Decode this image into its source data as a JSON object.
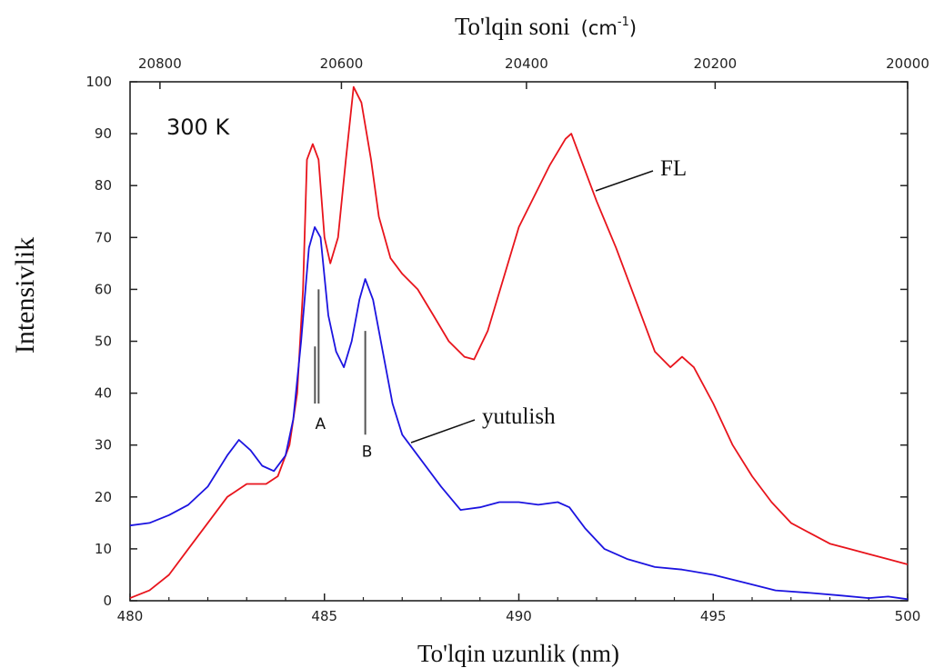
{
  "chart_data": {
    "type": "line",
    "title": "",
    "xlabel": "To'lqin uzunlik (nm)",
    "ylabel": "Intensivlik",
    "x2label": "To'lqin soni",
    "x2label_unit": "(cm",
    "x2label_exp": "-1",
    "x2label_close": ")",
    "xlim": [
      480,
      500
    ],
    "ylim": [
      0,
      100
    ],
    "xticks": [
      480,
      485,
      490,
      495,
      500
    ],
    "yticks": [
      0,
      10,
      20,
      30,
      40,
      50,
      60,
      70,
      80,
      90,
      100
    ],
    "x2ticks": [
      "20800",
      "20600",
      "20400",
      "20200",
      "20000"
    ],
    "x2tick_wavenumbers": [
      20800,
      20600,
      20400,
      20200,
      20000
    ],
    "grid": false,
    "annotations": {
      "temperature": "300 K",
      "peak_a": "A",
      "peak_b": "B",
      "peak_a_x": 484.85,
      "peak_b_x": 486.05
    },
    "series": [
      {
        "name": "FL",
        "color": "#e8141c",
        "points": [
          [
            480.0,
            0.5
          ],
          [
            480.5,
            2
          ],
          [
            481.0,
            5
          ],
          [
            481.5,
            10
          ],
          [
            482.0,
            15
          ],
          [
            482.5,
            20
          ],
          [
            483.0,
            22.5
          ],
          [
            483.5,
            22.5
          ],
          [
            483.8,
            24
          ],
          [
            484.1,
            30
          ],
          [
            484.3,
            40
          ],
          [
            484.45,
            60
          ],
          [
            484.55,
            85
          ],
          [
            484.7,
            88
          ],
          [
            484.85,
            85
          ],
          [
            485.0,
            70
          ],
          [
            485.15,
            65
          ],
          [
            485.35,
            70
          ],
          [
            485.55,
            85
          ],
          [
            485.75,
            99
          ],
          [
            485.95,
            96
          ],
          [
            486.2,
            85
          ],
          [
            486.4,
            74
          ],
          [
            486.7,
            66
          ],
          [
            487.0,
            63
          ],
          [
            487.4,
            60
          ],
          [
            487.8,
            55
          ],
          [
            488.2,
            50
          ],
          [
            488.6,
            47
          ],
          [
            488.85,
            46.5
          ],
          [
            489.2,
            52
          ],
          [
            489.6,
            62
          ],
          [
            490.0,
            72
          ],
          [
            490.4,
            78
          ],
          [
            490.8,
            84
          ],
          [
            491.2,
            89
          ],
          [
            491.35,
            90
          ],
          [
            491.6,
            85
          ],
          [
            492.0,
            77
          ],
          [
            492.5,
            68
          ],
          [
            493.0,
            58
          ],
          [
            493.5,
            48
          ],
          [
            493.9,
            45
          ],
          [
            494.2,
            47
          ],
          [
            494.5,
            45
          ],
          [
            495.0,
            38
          ],
          [
            495.5,
            30
          ],
          [
            496.0,
            24
          ],
          [
            496.5,
            19
          ],
          [
            497.0,
            15
          ],
          [
            497.5,
            13
          ],
          [
            498.0,
            11
          ],
          [
            498.5,
            10
          ],
          [
            499.0,
            9
          ],
          [
            499.5,
            8
          ],
          [
            500.0,
            7
          ]
        ]
      },
      {
        "name": "yutulish",
        "color": "#1c14e0",
        "points": [
          [
            480.0,
            14.5
          ],
          [
            480.5,
            15
          ],
          [
            481.0,
            16.5
          ],
          [
            481.5,
            18.5
          ],
          [
            482.0,
            22
          ],
          [
            482.5,
            28
          ],
          [
            482.8,
            31
          ],
          [
            483.1,
            29
          ],
          [
            483.4,
            26
          ],
          [
            483.7,
            25
          ],
          [
            484.0,
            28
          ],
          [
            484.2,
            35
          ],
          [
            484.4,
            50
          ],
          [
            484.6,
            68
          ],
          [
            484.75,
            72
          ],
          [
            484.9,
            70
          ],
          [
            485.1,
            55
          ],
          [
            485.3,
            48
          ],
          [
            485.5,
            45
          ],
          [
            485.7,
            50
          ],
          [
            485.9,
            58
          ],
          [
            486.05,
            62
          ],
          [
            486.25,
            58
          ],
          [
            486.5,
            48
          ],
          [
            486.75,
            38
          ],
          [
            487.0,
            32
          ],
          [
            487.5,
            27
          ],
          [
            488.0,
            22
          ],
          [
            488.5,
            17.5
          ],
          [
            489.0,
            18
          ],
          [
            489.5,
            19
          ],
          [
            490.0,
            19
          ],
          [
            490.5,
            18.5
          ],
          [
            491.0,
            19
          ],
          [
            491.3,
            18
          ],
          [
            491.7,
            14
          ],
          [
            492.2,
            10
          ],
          [
            492.8,
            8
          ],
          [
            493.5,
            6.5
          ],
          [
            494.2,
            6
          ],
          [
            495.0,
            5
          ],
          [
            495.8,
            3.5
          ],
          [
            496.6,
            2
          ],
          [
            497.5,
            1.5
          ],
          [
            498.3,
            1
          ],
          [
            499.0,
            0.5
          ],
          [
            499.5,
            0.8
          ],
          [
            500.0,
            0.3
          ]
        ]
      }
    ]
  }
}
